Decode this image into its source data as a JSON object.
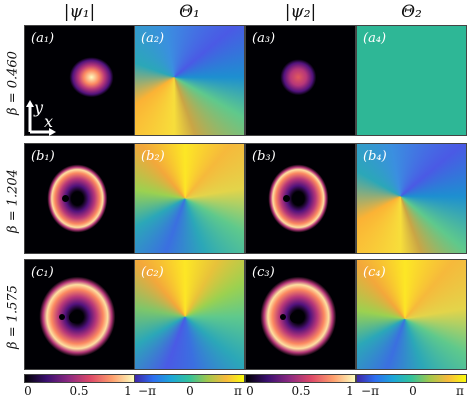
{
  "column_titles": [
    "|ψ₁|",
    "Θ₁",
    "|ψ₂|",
    "Θ₂"
  ],
  "row_labels": [
    "β = 0.460",
    "β = 1.204",
    "β = 1.575"
  ],
  "panel_labels": {
    "a1": "(a₁)",
    "a2": "(a₂)",
    "a3": "(a₃)",
    "a4": "(a₄)",
    "b1": "(b₁)",
    "b2": "(b₂)",
    "b3": "(b₃)",
    "b4": "(b₄)",
    "c1": "(c₁)",
    "c2": "(c₂)",
    "c3": "(c₃)",
    "c4": "(c₄)"
  },
  "axis_labels": {
    "y": "y",
    "x": "x"
  },
  "colorbars": {
    "amplitude": {
      "ticks": [
        "0",
        "0.5",
        "1"
      ]
    },
    "phase": {
      "ticks": [
        "−π",
        "0",
        "π"
      ]
    }
  },
  "colors": {
    "background_dark": "#000004",
    "phase_uniform": "#2eb796"
  }
}
